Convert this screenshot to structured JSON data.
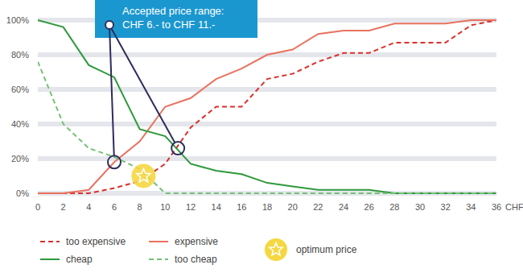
{
  "chart_data": {
    "type": "line",
    "x": [
      0,
      2,
      4,
      6,
      8,
      10,
      12,
      14,
      16,
      18,
      20,
      22,
      24,
      26,
      28,
      30,
      32,
      34,
      36
    ],
    "xlim": [
      0,
      36
    ],
    "xticks": [
      0,
      2,
      4,
      6,
      8,
      10,
      12,
      14,
      16,
      18,
      20,
      22,
      24,
      26,
      28,
      30,
      32,
      34,
      36
    ],
    "x_label": "CHF",
    "ylim": [
      0,
      100
    ],
    "yticks": [
      {
        "value": 0,
        "label": "0%"
      },
      {
        "value": 20,
        "label": "20%"
      },
      {
        "value": 40,
        "label": "40%"
      },
      {
        "value": 60,
        "label": "60%"
      },
      {
        "value": 80,
        "label": "80%"
      },
      {
        "value": 100,
        "label": "100%"
      }
    ],
    "grid": true,
    "legend": "bottom",
    "series": [
      {
        "name": "too expensive",
        "color": "#d9312b",
        "line_style": "dashed",
        "values": [
          0,
          0,
          0,
          3,
          7,
          17,
          38,
          50,
          50,
          66,
          69,
          76,
          81,
          81,
          87,
          87,
          87,
          97,
          100
        ]
      },
      {
        "name": "expensive",
        "color": "#e8725e",
        "line_style": "solid",
        "values": [
          0,
          0,
          2,
          18,
          30,
          50,
          55,
          66,
          72,
          80,
          83,
          92,
          94,
          94,
          98,
          98,
          98,
          100,
          100
        ]
      },
      {
        "name": "cheap",
        "color": "#2e9a3c",
        "line_style": "solid",
        "values": [
          100,
          96,
          74,
          67,
          37,
          33,
          17,
          13,
          11,
          6,
          4,
          2,
          2,
          2,
          0,
          0,
          0,
          0,
          0
        ]
      },
      {
        "name": "too cheap",
        "color": "#74c274",
        "line_style": "dashed",
        "values": [
          76,
          40,
          26,
          21,
          14,
          0,
          0,
          0,
          0,
          0,
          0,
          0,
          0,
          0,
          0,
          0,
          0,
          0,
          0
        ]
      }
    ],
    "annotation": {
      "lines": [
        "Accepted price range:",
        "CHF 6.- to CHF 11.-"
      ],
      "color": "#1b97cf"
    },
    "intersections": [
      {
        "x": 6,
        "y": 18
      },
      {
        "x": 11,
        "y": 26
      }
    ],
    "optimum": {
      "x": 8.3,
      "y": 10,
      "label": "optimum price",
      "color": "#f5d742"
    }
  }
}
